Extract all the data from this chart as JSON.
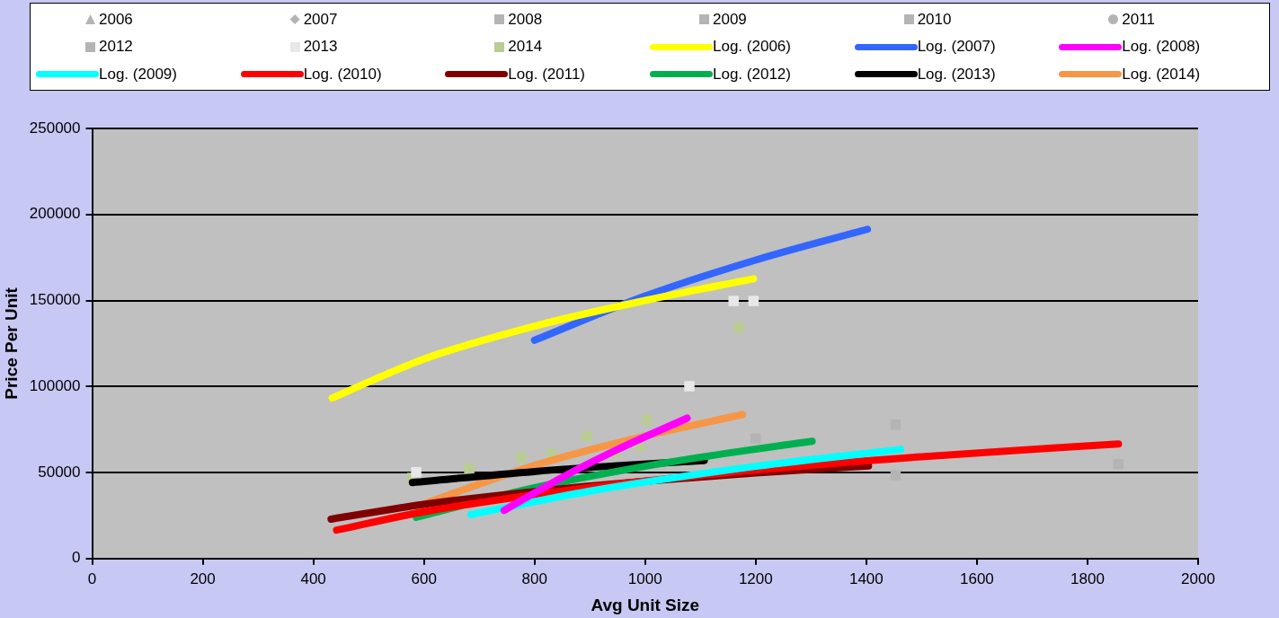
{
  "chart_data": {
    "type": "scatter",
    "xlabel": "Avg Unit Size",
    "ylabel": "Price Per Unit",
    "xlim": [
      0,
      2000
    ],
    "xticks": [
      0,
      200,
      400,
      600,
      800,
      1000,
      1200,
      1400,
      1600,
      1800,
      2000
    ],
    "ylim": [
      0,
      250000
    ],
    "yticks": [
      0,
      50000,
      100000,
      150000,
      200000,
      250000
    ],
    "grid": "y",
    "legend": "top",
    "series": [
      {
        "name": "2006",
        "type": "scatter",
        "marker": "triangle",
        "color": "#b4b4b4"
      },
      {
        "name": "2007",
        "type": "scatter",
        "marker": "diamond",
        "color": "#b4b4b4"
      },
      {
        "name": "2008",
        "type": "scatter",
        "marker": "square",
        "color": "#b4b4b4"
      },
      {
        "name": "2009",
        "type": "scatter",
        "marker": "square",
        "color": "#b4b4b4"
      },
      {
        "name": "2010",
        "type": "scatter",
        "marker": "square",
        "color": "#b4b4b4",
        "x": [
          1453,
          1856
        ],
        "values": [
          48500,
          54900
        ]
      },
      {
        "name": "2011",
        "type": "scatter",
        "marker": "circle",
        "color": "#b4b4b4"
      },
      {
        "name": "2012",
        "type": "scatter",
        "marker": "square",
        "color": "#b4b4b4",
        "x": [
          1453,
          1200
        ],
        "values": [
          77800,
          69800
        ]
      },
      {
        "name": "2013",
        "type": "scatter",
        "marker": "square",
        "color": "#e8e8e8",
        "x": [
          1080,
          1160,
          1196,
          586
        ],
        "values": [
          100200,
          149800,
          149800,
          50100
        ]
      },
      {
        "name": "2014",
        "type": "scatter",
        "marker": "square",
        "color": "#b9cc94",
        "x": [
          579,
          682,
          776,
          831,
          895,
          946,
          991,
          1003,
          1170
        ],
        "values": [
          46900,
          52200,
          58600,
          60800,
          70900,
          61300,
          65600,
          80600,
          134300
        ]
      },
      {
        "name": "Log. (2006)",
        "type": "line",
        "color": "#ffff00",
        "x": [
          434,
          600,
          800,
          1000,
          1196
        ],
        "values": [
          93300,
          116000,
          135100,
          150000,
          162600
        ]
      },
      {
        "name": "Log. (2007)",
        "type": "line",
        "color": "#3366ff",
        "x": [
          800,
          1000,
          1200,
          1402
        ],
        "values": [
          126900,
          152600,
          173500,
          191400
        ]
      },
      {
        "name": "Log. (2008)",
        "type": "line",
        "color": "#ff00ff",
        "x": [
          745,
          850,
          950,
          1076
        ],
        "values": [
          28000,
          47200,
          63400,
          81600
        ]
      },
      {
        "name": "Log. (2009)",
        "type": "line",
        "color": "#00ffff",
        "x": [
          685,
          900,
          1200,
          1462
        ],
        "values": [
          25600,
          39200,
          53600,
          63400
        ]
      },
      {
        "name": "Log. (2010)",
        "type": "line",
        "color": "#ff0000",
        "x": [
          442,
          600,
          900,
          1200,
          1500,
          1856
        ],
        "values": [
          16500,
          27200,
          41300,
          51400,
          59200,
          66600
        ]
      },
      {
        "name": "Log. (2011)",
        "type": "line",
        "color": "#800000",
        "x": [
          432,
          600,
          800,
          1000,
          1200,
          1404
        ],
        "values": [
          22900,
          31500,
          39000,
          44900,
          49700,
          53800
        ]
      },
      {
        "name": "Log. (2012)",
        "type": "line",
        "color": "#00b050",
        "x": [
          586,
          800,
          1000,
          1150,
          1302
        ],
        "values": [
          24000,
          41200,
          53600,
          61300,
          68200
        ]
      },
      {
        "name": "Log. (2013)",
        "type": "line",
        "color": "#000000",
        "x": [
          579,
          800,
          950,
          1107
        ],
        "values": [
          44200,
          50600,
          54000,
          57000
        ]
      },
      {
        "name": "Log. (2014)",
        "type": "line",
        "color": "#f79646",
        "x": [
          588,
          800,
          1000,
          1176
        ],
        "values": [
          30400,
          54100,
          71200,
          83700
        ]
      }
    ]
  }
}
